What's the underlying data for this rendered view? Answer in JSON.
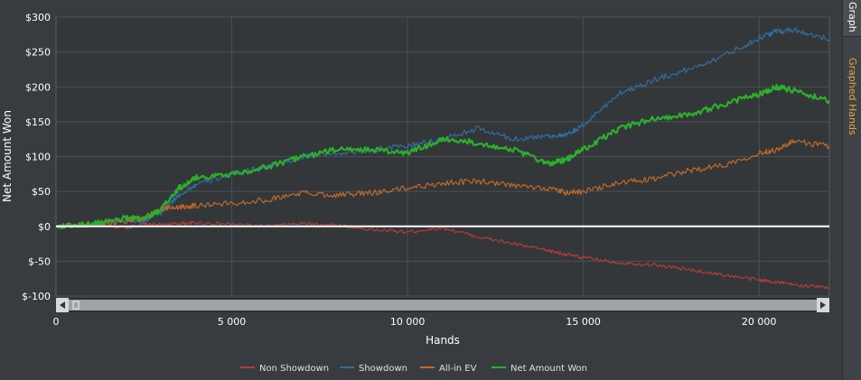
{
  "chart_data": {
    "type": "line",
    "title": "",
    "xlabel": "Hands",
    "ylabel": "Net Amount Won",
    "xlim": [
      0,
      22000
    ],
    "ylim": [
      -100,
      300
    ],
    "x_ticks": [
      0,
      5000,
      10000,
      15000,
      20000
    ],
    "x_tick_labels": [
      "0",
      "5 000",
      "10 000",
      "15 000",
      "20 000"
    ],
    "y_ticks": [
      -100,
      -50,
      0,
      50,
      100,
      150,
      200,
      250,
      300
    ],
    "y_tick_labels": [
      "$-100",
      "$-50",
      "$0",
      "$50",
      "$100",
      "$150",
      "$200",
      "$250",
      "$300"
    ],
    "grid": true,
    "legend_position": "bottom",
    "x": [
      0,
      1000,
      2000,
      2500,
      3000,
      3500,
      4000,
      5000,
      6000,
      7000,
      8000,
      9000,
      10000,
      11000,
      12000,
      13000,
      14000,
      14500,
      15000,
      16000,
      17000,
      18000,
      19000,
      20000,
      20500,
      21000,
      22000
    ],
    "series": [
      {
        "name": "Non Showdown",
        "color": "#b43c3c",
        "values": [
          0,
          2,
          -2,
          3,
          2,
          4,
          5,
          3,
          0,
          4,
          2,
          -5,
          -8,
          -2,
          -15,
          -25,
          -35,
          -40,
          -45,
          -52,
          -55,
          -62,
          -70,
          -77,
          -80,
          -84,
          -88
        ]
      },
      {
        "name": "Showdown",
        "color": "#2f6fa3",
        "values": [
          0,
          3,
          10,
          8,
          20,
          45,
          60,
          75,
          85,
          100,
          105,
          110,
          115,
          125,
          140,
          125,
          130,
          130,
          145,
          190,
          210,
          225,
          245,
          270,
          280,
          282,
          268
        ]
      },
      {
        "name": "All-in EV",
        "color": "#c06a28",
        "values": [
          0,
          2,
          8,
          12,
          25,
          28,
          30,
          33,
          38,
          48,
          45,
          48,
          55,
          62,
          65,
          58,
          55,
          48,
          50,
          62,
          68,
          80,
          88,
          105,
          110,
          122,
          115
        ]
      },
      {
        "name": "Net Amount Won",
        "color": "#2bb02b",
        "values": [
          0,
          3,
          12,
          10,
          25,
          55,
          70,
          75,
          85,
          100,
          110,
          110,
          105,
          125,
          120,
          110,
          90,
          95,
          110,
          140,
          155,
          160,
          175,
          190,
          200,
          195,
          180
        ]
      }
    ]
  },
  "side_tabs": {
    "graph": "Graph",
    "graphed_hands": "Graphed Hands"
  },
  "colors": {
    "background": "#383c40",
    "plot_background": "#34373a",
    "grid": "#4c5054",
    "zero_line": "#ffffff",
    "accent_tab": "#e8a33b"
  }
}
